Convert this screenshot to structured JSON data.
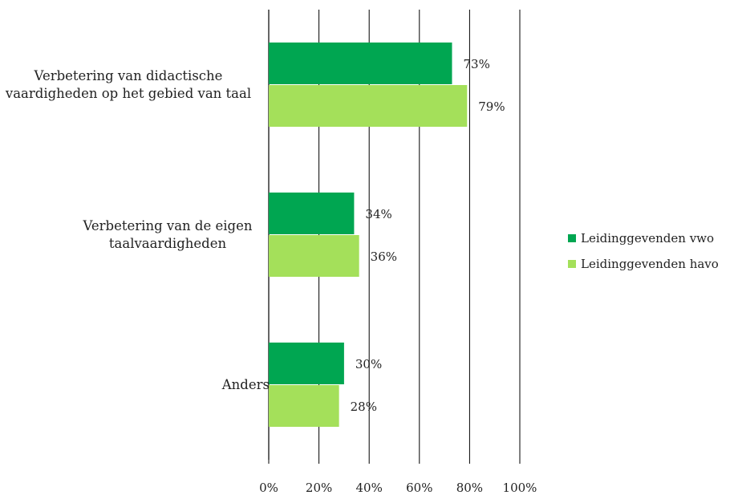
{
  "chart_data": {
    "type": "bar",
    "orientation": "horizontal",
    "categories": [
      [
        "Verbetering van didactische",
        "vaardigheden op het gebied van taal"
      ],
      [
        "Verbetering van de eigen",
        "taalvaardigheden"
      ],
      [
        "Anders"
      ]
    ],
    "series": [
      {
        "name": "Leidinggevenden vwo",
        "color": "#00a651",
        "values": [
          73,
          34,
          30
        ],
        "labels": [
          "73%",
          "34%",
          "30%"
        ]
      },
      {
        "name": "Leidinggevenden havo",
        "color": "#a4e05a",
        "values": [
          79,
          36,
          28
        ],
        "labels": [
          "79%",
          "36%",
          "28%"
        ]
      }
    ],
    "xlim": [
      0,
      100
    ],
    "xticks": [
      0,
      20,
      40,
      60,
      80,
      100
    ],
    "xtick_labels": [
      "0%",
      "20%",
      "40%",
      "60%",
      "80%",
      "100%"
    ],
    "grid": true,
    "legend_position": "right",
    "title": "",
    "xlabel": "",
    "ylabel": ""
  }
}
